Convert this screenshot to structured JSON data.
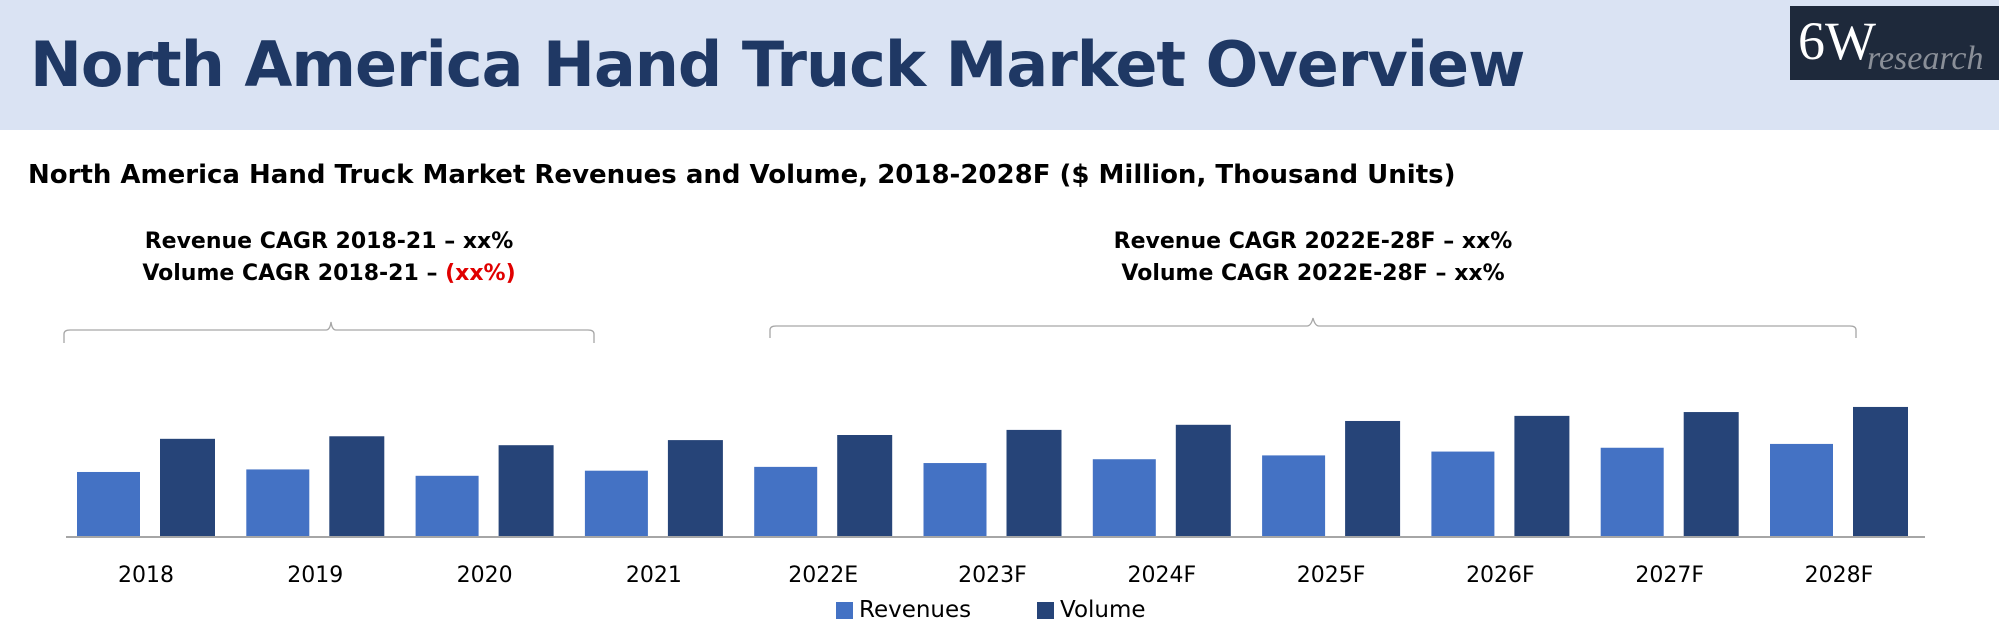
{
  "header": {
    "title": "North America Hand Truck Market Overview",
    "logo_main": "6W",
    "logo_sub": "research"
  },
  "colors": {
    "revenues": "#4472c4",
    "volume": "#264478",
    "header_bg": "#dae3f3"
  },
  "annotations": {
    "left": {
      "line1": "Revenue CAGR 2018-21 – xx%",
      "line2_prefix": "Volume CAGR 2018-21 – ",
      "line2_value": "(xx%)"
    },
    "right": {
      "line1": "Revenue CAGR 2022E-28F – xx%",
      "line2": "Volume CAGR 2022E-28F – xx%"
    }
  },
  "chart_data": {
    "type": "bar",
    "title": "North America Hand Truck Market Revenues and Volume, 2018-2028F ($ Million, Thousand Units)",
    "categories": [
      "2018",
      "2019",
      "2020",
      "2021",
      "2022E",
      "2023F",
      "2024F",
      "2025F",
      "2026F",
      "2027F",
      "2028F"
    ],
    "series": [
      {
        "name": "Revenues",
        "values": [
          51,
          53,
          48,
          52,
          55,
          58,
          61,
          64,
          67,
          70,
          73
        ]
      },
      {
        "name": "Volume",
        "values": [
          77,
          79,
          72,
          76,
          80,
          84,
          88,
          91,
          95,
          98,
          102
        ]
      }
    ],
    "xlabel": "",
    "ylabel": "",
    "ylim": [
      0,
      110
    ],
    "grid": false,
    "legend": "bottom"
  }
}
